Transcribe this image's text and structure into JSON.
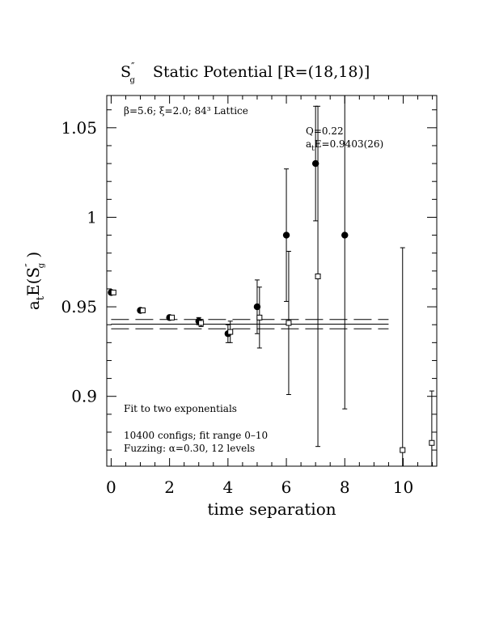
{
  "chart_data": {
    "type": "scatter",
    "title": {
      "symbol": "S",
      "symbol_sup": "″",
      "symbol_sub": "g",
      "text": "Static Potential [R=(18,18)]"
    },
    "xlabel": "time separation",
    "ylabel": {
      "prefix": "a",
      "prefix_sub": "t",
      "main": "E(S",
      "main_sup": "″",
      "main_sub": "g",
      "suffix": " )"
    },
    "xlim": [
      -0.15,
      11.15
    ],
    "ylim": [
      0.861,
      1.068
    ],
    "x_ticks": [
      0,
      2,
      4,
      6,
      8,
      10
    ],
    "x_tick_labels": [
      "0",
      "2",
      "4",
      "6",
      "8",
      "10"
    ],
    "y_ticks": [
      0.9,
      0.95,
      1.0,
      1.05
    ],
    "y_tick_labels": [
      "0.9",
      "0.95",
      "1",
      "1.05"
    ],
    "grid": false,
    "series": [
      {
        "marker": "filled-circle",
        "points": [
          {
            "x": 0,
            "y": 0.958,
            "err": 0.001
          },
          {
            "x": 1,
            "y": 0.948,
            "err": 0.001
          },
          {
            "x": 2,
            "y": 0.944,
            "err": 0.001
          },
          {
            "x": 3,
            "y": 0.942,
            "err": 0.002
          },
          {
            "x": 4,
            "y": 0.935,
            "err": 0.005
          },
          {
            "x": 5,
            "y": 0.95,
            "err": 0.015
          },
          {
            "x": 6,
            "y": 0.99,
            "err": 0.037
          },
          {
            "x": 7,
            "y": 1.03,
            "err": 0.032
          },
          {
            "x": 8,
            "y": 0.99,
            "err": 0.097
          }
        ]
      },
      {
        "marker": "open-square",
        "points": [
          {
            "x": 0.08,
            "y": 0.958,
            "err": 0.001
          },
          {
            "x": 1.08,
            "y": 0.948,
            "err": 0.001
          },
          {
            "x": 2.08,
            "y": 0.944,
            "err": 0.001
          },
          {
            "x": 3.08,
            "y": 0.941,
            "err": 0.002
          },
          {
            "x": 4.08,
            "y": 0.936,
            "err": 0.006
          },
          {
            "x": 5.08,
            "y": 0.944,
            "err": 0.017
          },
          {
            "x": 6.08,
            "y": 0.941,
            "err": 0.04
          },
          {
            "x": 7.08,
            "y": 0.967,
            "err": 0.095
          },
          {
            "x": 9.98,
            "y": 0.87,
            "err": 0.113
          },
          {
            "x": 10.98,
            "y": 0.874,
            "err": 0.029
          }
        ]
      }
    ],
    "fit": {
      "x_range": [
        0,
        9.5
      ],
      "value": 0.9403,
      "err": 0.0026
    },
    "annotations": {
      "lattice_label": "β=5.6; ξ=2.0; 84³ Lattice",
      "q_label": "Q=0.22",
      "fit_value_prefix": "a",
      "fit_value_sub": "t",
      "fit_value_suffix": "E=0.9403(26)",
      "fit_note_1": "Fit to two exponentials",
      "fit_note_2": "10400 configs; fit range 0–10",
      "fit_note_3": "Fuzzing: α=0.30, 12 levels"
    }
  }
}
